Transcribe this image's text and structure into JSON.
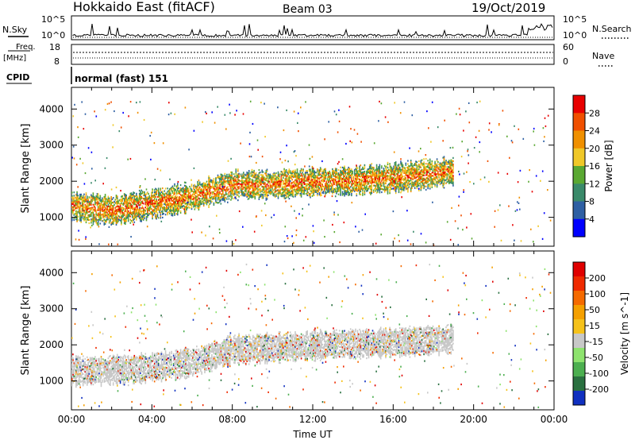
{
  "header": {
    "station": "Hokkaido East (fitACF)",
    "beam": "Beam 03",
    "date": "19/Oct/2019"
  },
  "status_panels": {
    "nsky_label": "N.Sky",
    "nsearch_label": "N.Search",
    "noise_ticks": [
      "10^5",
      "10^0"
    ],
    "freq_label": "Freq.",
    "freq_unit": "[MHz]",
    "freq_ticks": [
      "18",
      "8"
    ],
    "nave_label": "Nave",
    "nave_ticks": [
      "60",
      "0"
    ],
    "cpid_label": "CPID",
    "cpid_value": "normal (fast) 151"
  },
  "x_axis": {
    "label": "Time UT",
    "tick_labels": [
      "00:00",
      "04:00",
      "08:00",
      "12:00",
      "16:00",
      "20:00",
      "00:00"
    ]
  },
  "colors": {
    "power_scale": [
      "#0000ff",
      "#2e5fa3",
      "#3a8a6a",
      "#5aa832",
      "#f0c828",
      "#f09000",
      "#f05000",
      "#e80000"
    ],
    "velocity_scale": [
      "#1030c0",
      "#2a7040",
      "#4caf50",
      "#8ee36e",
      "#c8c8c8",
      "#f6c21a",
      "#f5a000",
      "#f56a00",
      "#ef2a00",
      "#e00000"
    ]
  },
  "chart_data": [
    {
      "type": "heatmap",
      "name": "power",
      "title": "",
      "xlabel": "",
      "ylabel": "Slant Range [km]",
      "xlim": [
        0,
        24
      ],
      "ylim": [
        200,
        4600
      ],
      "y_ticks": [
        "1000",
        "2000",
        "3000",
        "4000"
      ],
      "colorbar": {
        "label": "Power [dB]",
        "ticks": [
          "4",
          "8",
          "12",
          "16",
          "20",
          "24",
          "28"
        ],
        "range": [
          0,
          30
        ]
      },
      "bands": [
        {
          "x": 0,
          "y": 1300
        },
        {
          "x": 2,
          "y": 1160
        },
        {
          "x": 4,
          "y": 1360
        },
        {
          "x": 6,
          "y": 1560
        },
        {
          "x": 8,
          "y": 1880
        },
        {
          "x": 10,
          "y": 1900
        },
        {
          "x": 12,
          "y": 1960
        },
        {
          "x": 14,
          "y": 2000
        },
        {
          "x": 16,
          "y": 2080
        },
        {
          "x": 18,
          "y": 2200
        },
        {
          "x": 19,
          "y": 2260
        }
      ]
    },
    {
      "type": "heatmap",
      "name": "velocity",
      "title": "",
      "xlabel": "Time UT",
      "ylabel": "Slant Range [km]",
      "xlim": [
        0,
        24
      ],
      "ylim": [
        200,
        4600
      ],
      "y_ticks": [
        "1000",
        "2000",
        "3000",
        "4000"
      ],
      "colorbar": {
        "label": "Velocity [m s^-1]",
        "ticks": [
          "200",
          "100",
          "50",
          "15",
          "-15",
          "-50",
          "-100",
          "-200"
        ]
      },
      "bands": [
        {
          "x": 0,
          "y": 1250
        },
        {
          "x": 3,
          "y": 1300
        },
        {
          "x": 6,
          "y": 1500
        },
        {
          "x": 8,
          "y": 1850
        },
        {
          "x": 10,
          "y": 1900
        },
        {
          "x": 13,
          "y": 2000
        },
        {
          "x": 16,
          "y": 2050
        },
        {
          "x": 19,
          "y": 2150
        }
      ]
    }
  ]
}
